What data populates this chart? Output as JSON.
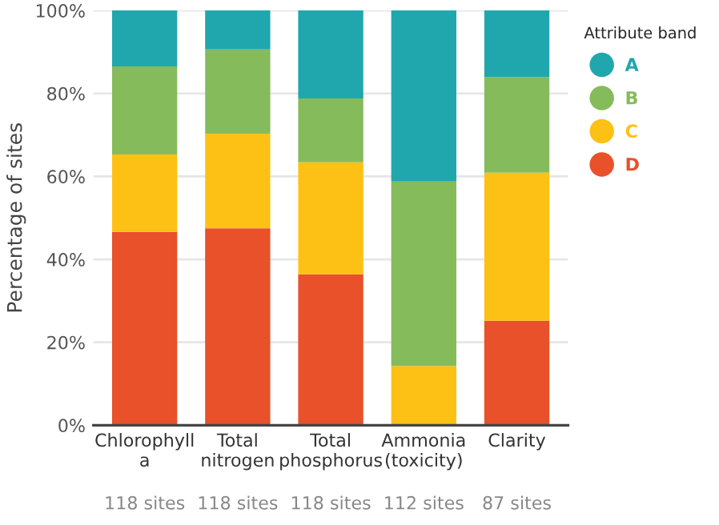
{
  "chart_data": {
    "type": "bar",
    "stacked": true,
    "ylabel": "Percentage of sites",
    "legend_title": "Attribute band",
    "legend": "right",
    "grid": "y",
    "categories": [
      "Chlorophyll\na",
      "Total\nnitrogen",
      "Total\nphosphorus",
      "Ammonia\n(toxicity)",
      "Clarity"
    ],
    "series": [
      {
        "name": "D",
        "color": "#e8512a",
        "values": [
          46.6,
          47.5,
          36.4,
          0,
          25.2
        ]
      },
      {
        "name": "C",
        "color": "#fdc116",
        "values": [
          18.7,
          22.8,
          27.0,
          14.3,
          35.7
        ]
      },
      {
        "name": "B",
        "color": "#86bb5b",
        "values": [
          21.2,
          20.3,
          15.4,
          44.5,
          23.0
        ]
      },
      {
        "name": "A",
        "color": "#20a7ad",
        "values": [
          13.5,
          9.4,
          21.2,
          41.2,
          16.1
        ]
      }
    ],
    "ylim": [
      0,
      100
    ],
    "yticks": [
      {
        "value": 0,
        "label": "0%"
      },
      {
        "value": 20,
        "label": "20%"
      },
      {
        "value": 40,
        "label": "40%"
      },
      {
        "value": 60,
        "label": "60%"
      },
      {
        "value": 80,
        "label": "80%"
      },
      {
        "value": 100,
        "label": "100%"
      }
    ],
    "annotations": [
      "118 sites",
      "118 sites",
      "118 sites",
      "112 sites",
      "87 sites"
    ]
  }
}
